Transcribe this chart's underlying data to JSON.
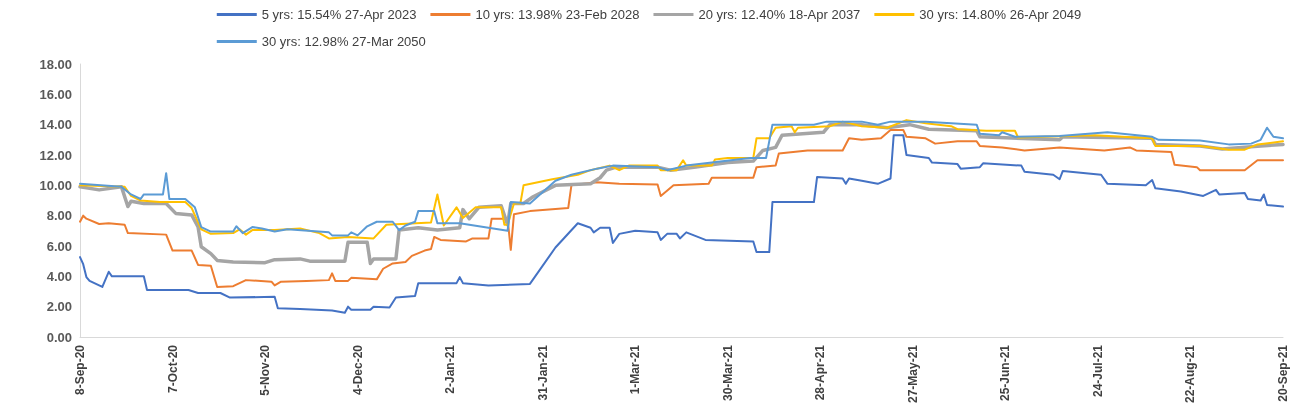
{
  "chart_data": {
    "type": "line",
    "legend": "top",
    "grid": false,
    "marker": "none",
    "line_style": "solid",
    "xlim": [
      "2020-09-08",
      "2021-09-20"
    ],
    "xticks": [
      {
        "value": "2020-09-08",
        "label": "8-Sep-20"
      },
      {
        "value": "2020-10-07",
        "label": "7-Oct-20"
      },
      {
        "value": "2020-11-05",
        "label": "5-Nov-20"
      },
      {
        "value": "2020-12-04",
        "label": "4-Dec-20"
      },
      {
        "value": "2021-01-02",
        "label": "2-Jan-21"
      },
      {
        "value": "2021-01-31",
        "label": "31-Jan-21"
      },
      {
        "value": "2021-03-01",
        "label": "1-Mar-21"
      },
      {
        "value": "2021-03-30",
        "label": "30-Mar-21"
      },
      {
        "value": "2021-04-28",
        "label": "28-Apr-21"
      },
      {
        "value": "2021-05-27",
        "label": "27-May-21"
      },
      {
        "value": "2021-06-25",
        "label": "25-Jun-21"
      },
      {
        "value": "2021-07-24",
        "label": "24-Jul-21"
      },
      {
        "value": "2021-08-22",
        "label": "22-Aug-21"
      },
      {
        "value": "2021-09-20",
        "label": "20-Sep-21"
      }
    ],
    "ylim": [
      0,
      18
    ],
    "yticks": [
      {
        "value": 0,
        "label": "0.00"
      },
      {
        "value": 2,
        "label": "2.00"
      },
      {
        "value": 4,
        "label": "4.00"
      },
      {
        "value": 6,
        "label": "6.00"
      },
      {
        "value": 8,
        "label": "8.00"
      },
      {
        "value": 10,
        "label": "10.00"
      },
      {
        "value": 12,
        "label": "12.00"
      },
      {
        "value": 14,
        "label": "14.00"
      },
      {
        "value": 16,
        "label": "16.00"
      },
      {
        "value": 18,
        "label": "18.00"
      }
    ],
    "series": [
      {
        "name": "5 yrs: 15.54% 27-Apr 2023",
        "color": "#4472c4",
        "x": [
          "2020-09-08",
          "2020-09-09",
          "2020-09-10",
          "2020-09-11",
          "2020-09-15",
          "2020-09-17",
          "2020-09-18",
          "2020-09-28",
          "2020-09-29",
          "2020-10-12",
          "2020-10-15",
          "2020-10-22",
          "2020-10-25",
          "2020-11-08",
          "2020-11-09",
          "2020-11-16",
          "2020-11-26",
          "2020-11-30",
          "2020-12-01",
          "2020-12-02",
          "2020-12-08",
          "2020-12-09",
          "2020-12-14",
          "2020-12-16",
          "2020-12-22",
          "2020-12-23",
          "2021-01-04",
          "2021-01-05",
          "2021-01-06",
          "2021-01-14",
          "2021-01-27",
          "2021-02-04",
          "2021-02-11",
          "2021-02-15",
          "2021-02-16",
          "2021-02-18",
          "2021-02-21",
          "2021-02-22",
          "2021-02-24",
          "2021-03-01",
          "2021-03-08",
          "2021-03-09",
          "2021-03-11",
          "2021-03-14",
          "2021-03-15",
          "2021-03-17",
          "2021-03-23",
          "2021-04-07",
          "2021-04-08",
          "2021-04-12",
          "2021-04-13",
          "2021-04-26",
          "2021-04-27",
          "2021-05-05",
          "2021-05-06",
          "2021-05-07",
          "2021-05-11",
          "2021-05-16",
          "2021-05-20",
          "2021-05-21",
          "2021-05-24",
          "2021-05-25",
          "2021-06-01",
          "2021-06-02",
          "2021-06-10",
          "2021-06-11",
          "2021-06-17",
          "2021-06-18",
          "2021-06-30",
          "2021-07-01",
          "2021-07-10",
          "2021-07-12",
          "2021-07-13",
          "2021-07-25",
          "2021-07-27",
          "2021-08-08",
          "2021-08-10",
          "2021-08-11",
          "2021-08-19",
          "2021-08-26",
          "2021-08-30",
          "2021-08-31",
          "2021-09-08",
          "2021-09-09",
          "2021-09-13",
          "2021-09-14",
          "2021-09-15",
          "2021-09-20"
        ],
        "values": [
          5.27,
          4.8,
          3.95,
          3.7,
          3.3,
          4.3,
          4.0,
          4.0,
          3.1,
          3.1,
          2.9,
          2.9,
          2.6,
          2.65,
          1.9,
          1.85,
          1.75,
          1.6,
          2.0,
          1.8,
          1.8,
          2.0,
          1.95,
          2.6,
          2.7,
          3.55,
          3.55,
          3.95,
          3.55,
          3.4,
          3.5,
          5.9,
          7.5,
          7.2,
          6.9,
          7.2,
          7.2,
          6.2,
          6.8,
          7.0,
          6.9,
          6.4,
          6.8,
          6.8,
          6.5,
          6.9,
          6.4,
          6.3,
          5.6,
          5.6,
          8.9,
          8.9,
          10.55,
          10.45,
          10.1,
          10.45,
          10.3,
          10.1,
          10.45,
          13.3,
          13.3,
          12.0,
          11.8,
          11.5,
          11.4,
          11.1,
          11.2,
          11.45,
          11.3,
          10.9,
          10.7,
          10.4,
          10.95,
          10.7,
          10.1,
          10.0,
          10.35,
          9.8,
          9.6,
          9.3,
          9.7,
          9.4,
          9.5,
          9.1,
          9.0,
          9.4,
          8.7,
          8.6
        ]
      },
      {
        "name": "10 yrs: 13.98% 23-Feb 2028",
        "color": "#ed7d31",
        "x": [
          "2020-09-08",
          "2020-09-09",
          "2020-09-10",
          "2020-09-14",
          "2020-09-17",
          "2020-09-22",
          "2020-09-23",
          "2020-10-05",
          "2020-10-07",
          "2020-10-13",
          "2020-10-15",
          "2020-10-19",
          "2020-10-21",
          "2020-10-26",
          "2020-10-30",
          "2020-11-07",
          "2020-11-08",
          "2020-11-10",
          "2020-11-18",
          "2020-11-25",
          "2020-11-26",
          "2020-11-27",
          "2020-12-01",
          "2020-12-02",
          "2020-12-10",
          "2020-12-12",
          "2020-12-15",
          "2020-12-19",
          "2020-12-21",
          "2020-12-25",
          "2020-12-27",
          "2020-12-28",
          "2020-12-30",
          "2021-01-07",
          "2021-01-09",
          "2021-01-14",
          "2021-01-15",
          "2021-01-20",
          "2021-01-21",
          "2021-01-22",
          "2021-01-27",
          "2021-02-08",
          "2021-02-09",
          "2021-02-17",
          "2021-02-24",
          "2021-03-08",
          "2021-03-09",
          "2021-03-13",
          "2021-03-24",
          "2021-03-25",
          "2021-04-07",
          "2021-04-08",
          "2021-04-14",
          "2021-04-15",
          "2021-04-24",
          "2021-05-05",
          "2021-05-07",
          "2021-05-11",
          "2021-05-17",
          "2021-05-20",
          "2021-05-24",
          "2021-05-25",
          "2021-05-31",
          "2021-06-03",
          "2021-06-10",
          "2021-06-16",
          "2021-06-17",
          "2021-06-24",
          "2021-07-01",
          "2021-07-12",
          "2021-07-26",
          "2021-08-03",
          "2021-08-05",
          "2021-08-16",
          "2021-08-17",
          "2021-08-24",
          "2021-08-25",
          "2021-09-08",
          "2021-09-12",
          "2021-09-20"
        ],
        "values": [
          7.6,
          8.0,
          7.8,
          7.45,
          7.5,
          7.4,
          6.85,
          6.75,
          5.7,
          5.7,
          4.75,
          4.7,
          3.3,
          3.35,
          3.75,
          3.65,
          3.4,
          3.65,
          3.7,
          3.75,
          4.2,
          3.7,
          3.7,
          3.9,
          3.8,
          4.5,
          4.85,
          4.95,
          5.35,
          5.7,
          5.8,
          6.6,
          6.4,
          6.3,
          6.5,
          6.5,
          7.8,
          7.8,
          5.75,
          8.1,
          8.3,
          8.5,
          10.0,
          10.2,
          10.1,
          10.05,
          9.3,
          10.0,
          10.1,
          10.5,
          10.5,
          11.2,
          11.3,
          12.1,
          12.3,
          12.3,
          13.1,
          13.0,
          13.1,
          13.65,
          13.65,
          13.2,
          13.1,
          12.75,
          12.9,
          12.9,
          12.6,
          12.5,
          12.3,
          12.5,
          12.3,
          12.5,
          12.3,
          12.2,
          11.35,
          11.2,
          11.0,
          11.0,
          11.65,
          11.65
        ]
      },
      {
        "name": "20 yrs: 12.40% 18-Apr 2037",
        "color": "#a5a5a5",
        "x": [
          "2020-09-08",
          "2020-09-14",
          "2020-09-21",
          "2020-09-23",
          "2020-09-24",
          "2020-09-28",
          "2020-10-05",
          "2020-10-08",
          "2020-10-13",
          "2020-10-15",
          "2020-10-16",
          "2020-10-19",
          "2020-10-21",
          "2020-10-26",
          "2020-11-05",
          "2020-11-08",
          "2020-11-16",
          "2020-11-19",
          "2020-11-30",
          "2020-12-01",
          "2020-12-07",
          "2020-12-08",
          "2020-12-09",
          "2020-12-16",
          "2020-12-17",
          "2020-12-23",
          "2020-12-29",
          "2021-01-05",
          "2021-01-06",
          "2021-01-08",
          "2021-01-11",
          "2021-01-18",
          "2021-01-20",
          "2021-01-21",
          "2021-01-25",
          "2021-01-28",
          "2021-02-04",
          "2021-02-15",
          "2021-02-18",
          "2021-02-20",
          "2021-02-23",
          "2021-03-08",
          "2021-03-12",
          "2021-03-20",
          "2021-03-30",
          "2021-04-07",
          "2021-04-10",
          "2021-04-14",
          "2021-04-16",
          "2021-04-29",
          "2021-05-01",
          "2021-05-11",
          "2021-05-19",
          "2021-05-26",
          "2021-06-01",
          "2021-06-16",
          "2021-06-17",
          "2021-07-12",
          "2021-07-13",
          "2021-08-10",
          "2021-08-11",
          "2021-08-25",
          "2021-09-01",
          "2021-09-13",
          "2021-09-20"
        ],
        "values": [
          9.9,
          9.7,
          9.9,
          8.6,
          8.95,
          8.8,
          8.8,
          8.15,
          8.05,
          7.25,
          5.95,
          5.5,
          5.05,
          4.95,
          4.9,
          5.1,
          5.15,
          5.0,
          5.0,
          6.25,
          6.25,
          4.85,
          5.15,
          5.15,
          7.05,
          7.2,
          7.05,
          7.2,
          8.4,
          7.8,
          8.55,
          8.65,
          7.4,
          8.8,
          8.8,
          9.25,
          10.0,
          10.1,
          10.5,
          11.0,
          11.2,
          11.2,
          11.0,
          11.2,
          11.5,
          11.6,
          12.3,
          12.5,
          13.3,
          13.5,
          14.0,
          14.0,
          13.8,
          14.0,
          13.7,
          13.6,
          13.2,
          13.0,
          13.2,
          13.1,
          12.7,
          12.6,
          12.4,
          12.6,
          12.7
        ]
      },
      {
        "name": "30 yrs: 14.80% 26-Apr 2049",
        "color": "#ffc000",
        "x": [
          "2020-09-08",
          "2020-09-22",
          "2020-09-24",
          "2020-09-27",
          "2020-10-03",
          "2020-10-11",
          "2020-10-13",
          "2020-10-16",
          "2020-10-19",
          "2020-10-26",
          "2020-10-28",
          "2020-10-30",
          "2020-11-01",
          "2020-11-08",
          "2020-11-16",
          "2020-11-22",
          "2020-11-25",
          "2020-12-01",
          "2020-12-09",
          "2020-12-13",
          "2020-12-27",
          "2020-12-29",
          "2020-12-31",
          "2021-01-04",
          "2021-01-06",
          "2021-01-10",
          "2021-01-18",
          "2021-01-19",
          "2021-01-20",
          "2021-01-22",
          "2021-01-24",
          "2021-01-25",
          "2021-02-03",
          "2021-02-11",
          "2021-02-15",
          "2021-02-21",
          "2021-02-24",
          "2021-02-27",
          "2021-03-08",
          "2021-03-09",
          "2021-03-14",
          "2021-03-16",
          "2021-03-17",
          "2021-03-25",
          "2021-03-26",
          "2021-03-30",
          "2021-04-07",
          "2021-04-08",
          "2021-04-12",
          "2021-04-14",
          "2021-04-19",
          "2021-04-20",
          "2021-04-21",
          "2021-05-01",
          "2021-05-05",
          "2021-05-11",
          "2021-05-19",
          "2021-05-25",
          "2021-05-31",
          "2021-06-08",
          "2021-06-10",
          "2021-06-19",
          "2021-06-28",
          "2021-06-29",
          "2021-07-23",
          "2021-08-05",
          "2021-08-10",
          "2021-08-11",
          "2021-08-25",
          "2021-09-03",
          "2021-09-08",
          "2021-09-12",
          "2021-09-20"
        ],
        "values": [
          10.0,
          9.9,
          9.3,
          9.0,
          8.9,
          8.9,
          8.5,
          7.1,
          6.8,
          6.85,
          7.1,
          6.75,
          7.05,
          7.05,
          7.15,
          6.85,
          6.5,
          6.6,
          6.5,
          7.4,
          7.55,
          9.4,
          7.35,
          8.55,
          7.85,
          8.55,
          8.55,
          7.4,
          7.4,
          8.8,
          8.8,
          10.0,
          10.4,
          10.7,
          11.0,
          11.3,
          11.0,
          11.3,
          11.3,
          11.0,
          11.0,
          11.65,
          11.3,
          11.3,
          11.7,
          11.8,
          11.8,
          13.1,
          13.1,
          13.8,
          13.9,
          13.5,
          13.8,
          13.9,
          14.2,
          13.9,
          13.8,
          14.3,
          14.1,
          13.9,
          13.7,
          13.6,
          13.6,
          13.15,
          13.3,
          13.15,
          13.1,
          12.6,
          12.6,
          12.35,
          12.35,
          12.7,
          12.9
        ]
      },
      {
        "name": "30 yrs: 12.98% 27-Mar 2050",
        "color": "#5b9bd5",
        "x": [
          "2020-09-08",
          "2020-09-21",
          "2020-09-24",
          "2020-09-27",
          "2020-09-28",
          "2020-10-04",
          "2020-10-05",
          "2020-10-06",
          "2020-10-11",
          "2020-10-14",
          "2020-10-16",
          "2020-10-19",
          "2020-10-26",
          "2020-10-27",
          "2020-10-29",
          "2020-11-01",
          "2020-11-04",
          "2020-11-08",
          "2020-11-12",
          "2020-11-25",
          "2020-11-26",
          "2020-12-01",
          "2020-12-02",
          "2020-12-04",
          "2020-12-07",
          "2020-12-10",
          "2020-12-15",
          "2020-12-17",
          "2020-12-19",
          "2020-12-22",
          "2020-12-23",
          "2020-12-28",
          "2020-12-29",
          "2021-01-05",
          "2021-01-17",
          "2021-01-20",
          "2021-01-21",
          "2021-01-27",
          "2021-02-04",
          "2021-02-09",
          "2021-02-17",
          "2021-02-22",
          "2021-03-08",
          "2021-03-11",
          "2021-03-17",
          "2021-03-25",
          "2021-04-06",
          "2021-04-11",
          "2021-04-13",
          "2021-04-26",
          "2021-04-30",
          "2021-05-11",
          "2021-05-16",
          "2021-05-20",
          "2021-05-31",
          "2021-06-16",
          "2021-06-17",
          "2021-06-23",
          "2021-06-24",
          "2021-06-28",
          "2021-07-12",
          "2021-07-27",
          "2021-08-10",
          "2021-08-12",
          "2021-08-25",
          "2021-09-03",
          "2021-09-10",
          "2021-09-13",
          "2021-09-15",
          "2021-09-17",
          "2021-09-20"
        ],
        "values": [
          10.1,
          9.9,
          9.4,
          9.1,
          9.4,
          9.4,
          10.8,
          9.1,
          9.1,
          8.55,
          7.25,
          6.95,
          6.95,
          7.3,
          6.85,
          7.25,
          7.15,
          6.95,
          7.1,
          6.9,
          6.7,
          6.7,
          6.9,
          6.7,
          7.3,
          7.6,
          7.6,
          7.05,
          7.35,
          7.6,
          8.3,
          8.3,
          7.5,
          7.5,
          7.1,
          7.0,
          8.9,
          8.8,
          10.3,
          10.7,
          11.1,
          11.3,
          11.2,
          11.0,
          11.3,
          11.5,
          11.8,
          11.8,
          14.0,
          14.0,
          14.2,
          14.2,
          14.0,
          14.2,
          14.2,
          14.0,
          13.4,
          13.3,
          13.5,
          13.2,
          13.25,
          13.5,
          13.2,
          13.0,
          12.95,
          12.7,
          12.75,
          13.0,
          13.8,
          13.2,
          13.1
        ]
      }
    ]
  }
}
